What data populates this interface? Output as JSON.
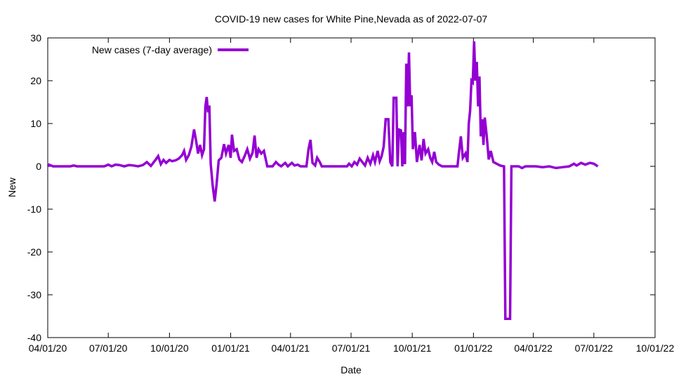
{
  "chart_data": {
    "type": "line",
    "title": "COVID-19 new cases for White Pine,Nevada as of 2022-07-07",
    "xlabel": "Date",
    "ylabel": "New",
    "xlim": [
      "2020-04-01",
      "2022-10-01"
    ],
    "ylim": [
      -40,
      30
    ],
    "x_ticks": [
      "04/01/20",
      "07/01/20",
      "10/01/20",
      "01/01/21",
      "04/01/21",
      "07/01/21",
      "10/01/21",
      "01/01/22",
      "04/01/22",
      "07/01/22",
      "10/01/22"
    ],
    "y_ticks": [
      -40,
      -30,
      -20,
      -10,
      0,
      10,
      20,
      30
    ],
    "grid": false,
    "legend": {
      "position": "top-left"
    },
    "series": [
      {
        "name": "New cases (7-day average)",
        "color": "#9400d3",
        "points": [
          [
            "2020-04-01",
            0
          ],
          [
            "2020-04-03",
            0.4
          ],
          [
            "2020-04-06",
            0.2
          ],
          [
            "2020-04-09",
            0
          ],
          [
            "2020-05-05",
            0
          ],
          [
            "2020-05-10",
            0.2
          ],
          [
            "2020-05-15",
            0
          ],
          [
            "2020-06-25",
            0
          ],
          [
            "2020-07-01",
            0.4
          ],
          [
            "2020-07-06",
            0
          ],
          [
            "2020-07-12",
            0.4
          ],
          [
            "2020-07-18",
            0.3
          ],
          [
            "2020-07-25",
            0
          ],
          [
            "2020-08-01",
            0.3
          ],
          [
            "2020-08-08",
            0.2
          ],
          [
            "2020-08-15",
            0
          ],
          [
            "2020-08-22",
            0.3
          ],
          [
            "2020-08-28",
            1.0
          ],
          [
            "2020-09-03",
            0.1
          ],
          [
            "2020-09-10",
            1.5
          ],
          [
            "2020-09-14",
            2.4
          ],
          [
            "2020-09-18",
            0.5
          ],
          [
            "2020-09-22",
            1.5
          ],
          [
            "2020-09-26",
            0.8
          ],
          [
            "2020-10-01",
            1.5
          ],
          [
            "2020-10-05",
            1.2
          ],
          [
            "2020-10-10",
            1.4
          ],
          [
            "2020-10-15",
            1.8
          ],
          [
            "2020-10-20",
            2.6
          ],
          [
            "2020-10-23",
            3.6
          ],
          [
            "2020-10-26",
            1.5
          ],
          [
            "2020-10-30",
            2.6
          ],
          [
            "2020-11-03",
            4.6
          ],
          [
            "2020-11-07",
            8.6
          ],
          [
            "2020-11-10",
            6.0
          ],
          [
            "2020-11-13",
            3.0
          ],
          [
            "2020-11-16",
            5.0
          ],
          [
            "2020-11-19",
            2.6
          ],
          [
            "2020-11-22",
            4.0
          ],
          [
            "2020-11-24",
            14.0
          ],
          [
            "2020-11-26",
            16.2
          ],
          [
            "2020-11-28",
            12.6
          ],
          [
            "2020-11-30",
            14.2
          ],
          [
            "2020-12-02",
            0.6
          ],
          [
            "2020-12-05",
            -4.6
          ],
          [
            "2020-12-08",
            -8.2
          ],
          [
            "2020-12-11",
            -4.0
          ],
          [
            "2020-12-14",
            1.4
          ],
          [
            "2020-12-18",
            2.0
          ],
          [
            "2020-12-22",
            5.2
          ],
          [
            "2020-12-25",
            3.0
          ],
          [
            "2020-12-29",
            5.0
          ],
          [
            "2021-01-01",
            2.0
          ],
          [
            "2021-01-03",
            7.4
          ],
          [
            "2021-01-06",
            3.6
          ],
          [
            "2021-01-10",
            4.0
          ],
          [
            "2021-01-14",
            1.6
          ],
          [
            "2021-01-18",
            1.0
          ],
          [
            "2021-01-22",
            2.4
          ],
          [
            "2021-01-26",
            4.0
          ],
          [
            "2021-01-30",
            1.8
          ],
          [
            "2021-02-03",
            3.2
          ],
          [
            "2021-02-06",
            7.2
          ],
          [
            "2021-02-09",
            2.0
          ],
          [
            "2021-02-12",
            4.0
          ],
          [
            "2021-02-16",
            3.0
          ],
          [
            "2021-02-20",
            3.6
          ],
          [
            "2021-02-25",
            0
          ],
          [
            "2021-03-05",
            0
          ],
          [
            "2021-03-10",
            1.0
          ],
          [
            "2021-03-14",
            0.4
          ],
          [
            "2021-03-18",
            0
          ],
          [
            "2021-03-24",
            0.8
          ],
          [
            "2021-03-28",
            0
          ],
          [
            "2021-04-03",
            0.8
          ],
          [
            "2021-04-07",
            0.2
          ],
          [
            "2021-04-12",
            0.4
          ],
          [
            "2021-04-16",
            0
          ],
          [
            "2021-04-25",
            0
          ],
          [
            "2021-04-28",
            4.0
          ],
          [
            "2021-05-01",
            6.2
          ],
          [
            "2021-05-04",
            0.8
          ],
          [
            "2021-05-08",
            0.2
          ],
          [
            "2021-05-11",
            2.0
          ],
          [
            "2021-05-15",
            1.0
          ],
          [
            "2021-05-18",
            0
          ],
          [
            "2021-06-25",
            0
          ],
          [
            "2021-06-28",
            0.6
          ],
          [
            "2021-07-02",
            0
          ],
          [
            "2021-07-06",
            1.0
          ],
          [
            "2021-07-10",
            0.4
          ],
          [
            "2021-07-14",
            1.8
          ],
          [
            "2021-07-18",
            1.0
          ],
          [
            "2021-07-22",
            0.2
          ],
          [
            "2021-07-26",
            2.0
          ],
          [
            "2021-07-30",
            0.6
          ],
          [
            "2021-08-03",
            2.6
          ],
          [
            "2021-08-06",
            1.0
          ],
          [
            "2021-08-10",
            3.6
          ],
          [
            "2021-08-13",
            1.2
          ],
          [
            "2021-08-16",
            2.4
          ],
          [
            "2021-08-19",
            4.6
          ],
          [
            "2021-08-22",
            11.0
          ],
          [
            "2021-08-26",
            11.0
          ],
          [
            "2021-08-29",
            1.0
          ],
          [
            "2021-09-01",
            0
          ],
          [
            "2021-09-03",
            16.0
          ],
          [
            "2021-09-07",
            16.0
          ],
          [
            "2021-09-09",
            0
          ],
          [
            "2021-09-11",
            8.6
          ],
          [
            "2021-09-14",
            8.4
          ],
          [
            "2021-09-16",
            0
          ],
          [
            "2021-09-18",
            8.0
          ],
          [
            "2021-09-20",
            0.5
          ],
          [
            "2021-09-22",
            24.0
          ],
          [
            "2021-09-24",
            14.0
          ],
          [
            "2021-09-26",
            26.6
          ],
          [
            "2021-09-28",
            14.0
          ],
          [
            "2021-09-30",
            16.6
          ],
          [
            "2021-10-02",
            4.0
          ],
          [
            "2021-10-05",
            8.0
          ],
          [
            "2021-10-08",
            1.0
          ],
          [
            "2021-10-12",
            5.0
          ],
          [
            "2021-10-15",
            1.4
          ],
          [
            "2021-10-18",
            6.4
          ],
          [
            "2021-10-21",
            3.0
          ],
          [
            "2021-10-25",
            4.0
          ],
          [
            "2021-10-28",
            2.0
          ],
          [
            "2021-10-31",
            1.0
          ],
          [
            "2021-11-03",
            3.4
          ],
          [
            "2021-11-06",
            1.0
          ],
          [
            "2021-11-10",
            0.4
          ],
          [
            "2021-11-15",
            0
          ],
          [
            "2021-12-08",
            0
          ],
          [
            "2021-12-10",
            3.0
          ],
          [
            "2021-12-13",
            7.0
          ],
          [
            "2021-12-16",
            2.0
          ],
          [
            "2021-12-20",
            3.0
          ],
          [
            "2021-12-23",
            1.0
          ],
          [
            "2021-12-25",
            10.0
          ],
          [
            "2021-12-27",
            13.0
          ],
          [
            "2021-12-29",
            20.0
          ],
          [
            "2021-12-31",
            19.6
          ],
          [
            "2022-01-02",
            29.2
          ],
          [
            "2022-01-04",
            20.0
          ],
          [
            "2022-01-06",
            24.4
          ],
          [
            "2022-01-08",
            14.0
          ],
          [
            "2022-01-10",
            21.0
          ],
          [
            "2022-01-12",
            7.0
          ],
          [
            "2022-01-14",
            11.0
          ],
          [
            "2022-01-16",
            5.0
          ],
          [
            "2022-01-18",
            11.4
          ],
          [
            "2022-01-21",
            7.0
          ],
          [
            "2022-01-24",
            1.6
          ],
          [
            "2022-01-27",
            3.6
          ],
          [
            "2022-01-31",
            1.0
          ],
          [
            "2022-02-05",
            0.6
          ],
          [
            "2022-02-10",
            0.2
          ],
          [
            "2022-02-16",
            0
          ],
          [
            "2022-02-18",
            -35.6
          ],
          [
            "2022-02-25",
            -35.6
          ],
          [
            "2022-02-27",
            0
          ],
          [
            "2022-03-10",
            0
          ],
          [
            "2022-03-15",
            -0.4
          ],
          [
            "2022-03-20",
            0
          ],
          [
            "2022-04-05",
            0
          ],
          [
            "2022-04-15",
            -0.2
          ],
          [
            "2022-04-25",
            0
          ],
          [
            "2022-05-05",
            -0.4
          ],
          [
            "2022-05-15",
            -0.2
          ],
          [
            "2022-05-25",
            0
          ],
          [
            "2022-06-01",
            0.6
          ],
          [
            "2022-06-05",
            0.2
          ],
          [
            "2022-06-12",
            0.8
          ],
          [
            "2022-06-18",
            0.4
          ],
          [
            "2022-06-25",
            0.8
          ],
          [
            "2022-07-01",
            0.6
          ],
          [
            "2022-07-07",
            0
          ]
        ]
      }
    ]
  }
}
